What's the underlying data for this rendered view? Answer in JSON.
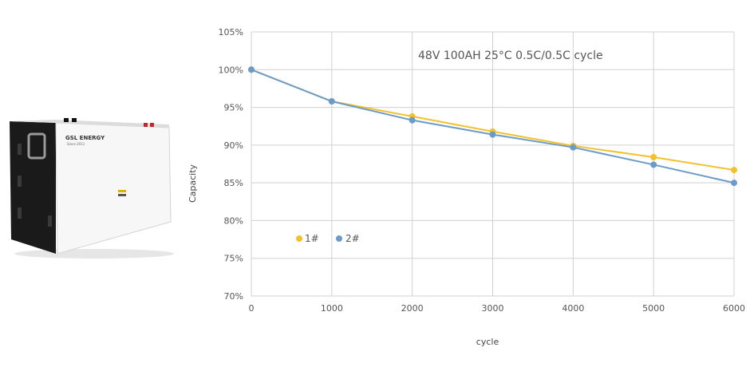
{
  "product": {
    "brand": "GSL ENERGY",
    "since": "Since 2011"
  },
  "chart_data": {
    "type": "line",
    "title": "48V 100AH 25°C 0.5C/0.5C cycle",
    "xlabel": "cycle",
    "ylabel": "Capacity",
    "x": [
      0,
      1000,
      2000,
      3000,
      4000,
      5000,
      6000
    ],
    "x_ticks": [
      "0",
      "1000",
      "2000",
      "3000",
      "4000",
      "5000",
      "6000"
    ],
    "xlim": [
      0,
      6000
    ],
    "ylim": [
      70,
      105
    ],
    "y_ticks": [
      70,
      75,
      80,
      85,
      90,
      95,
      100,
      105
    ],
    "y_tick_labels": [
      "70%",
      "75%",
      "80%",
      "85%",
      "90%",
      "95%",
      "100%",
      "105%"
    ],
    "grid": true,
    "legend_position": "bottom-left inside",
    "series": [
      {
        "name": "1#",
        "color": "#F2C12E",
        "values": [
          100,
          95.8,
          93.8,
          91.8,
          89.9,
          88.4,
          86.7
        ]
      },
      {
        "name": "2#",
        "color": "#6C9BC9",
        "values": [
          100,
          95.8,
          93.3,
          91.4,
          89.7,
          87.4,
          85.0
        ]
      }
    ]
  }
}
